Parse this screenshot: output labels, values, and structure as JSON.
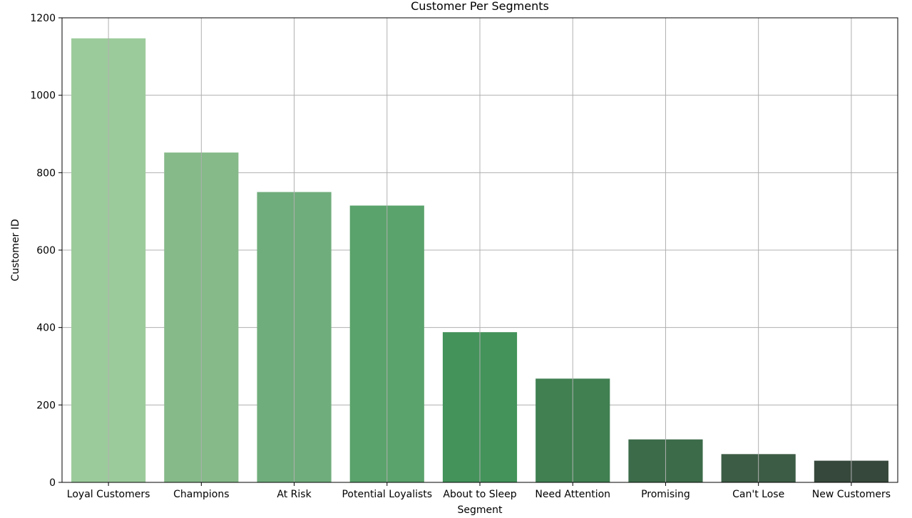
{
  "chart_data": {
    "type": "bar",
    "title": "Customer Per Segments",
    "xlabel": "Segment",
    "ylabel": "Customer ID",
    "categories": [
      "Loyal Customers",
      "Champions",
      "At Risk",
      "Potential Loyalists",
      "About to Sleep",
      "Need Attention",
      "Promising",
      "Can't Lose",
      "New Customers"
    ],
    "values": [
      1147,
      852,
      750,
      715,
      388,
      268,
      111,
      73,
      56
    ],
    "ylim": [
      0,
      1200
    ],
    "yticks": [
      0,
      200,
      400,
      600,
      800,
      1000,
      1200
    ],
    "grid": true,
    "colors": [
      "#9ccb9b",
      "#86ba89",
      "#70ad7c",
      "#5aa36c",
      "#43935a",
      "#408051",
      "#3c6b49",
      "#3c5c45",
      "#36483b"
    ],
    "grid_color": "#b0b0b0",
    "axis_color": "#000000"
  }
}
